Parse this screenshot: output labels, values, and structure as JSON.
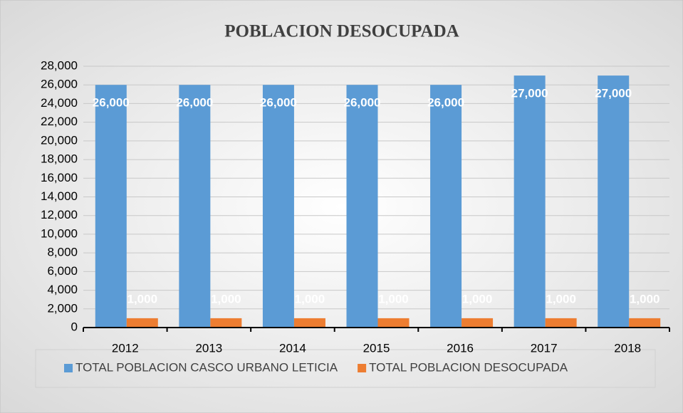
{
  "chart_data": {
    "type": "bar",
    "title": "POBLACION DESOCUPADA",
    "categories": [
      "2012",
      "2013",
      "2014",
      "2015",
      "2016",
      "2017",
      "2018"
    ],
    "series": [
      {
        "name": "TOTAL POBLACION CASCO URBANO LETICIA",
        "color": "#5b9bd5",
        "values": [
          26000,
          26000,
          26000,
          26000,
          26000,
          27000,
          27000
        ],
        "value_labels": [
          "26,000",
          "26,000",
          "26,000",
          "26,000",
          "26,000",
          "27,000",
          "27,000"
        ]
      },
      {
        "name": "TOTAL POBLACION DESOCUPADA",
        "color": "#ed7d31",
        "values": [
          1000,
          1000,
          1000,
          1000,
          1000,
          1000,
          1000
        ],
        "value_labels": [
          "1,000",
          "1,000",
          "1,000",
          "1,000",
          "1,000",
          "1,000",
          "1,000"
        ]
      }
    ],
    "ylim": [
      0,
      28000
    ],
    "yticks": [
      0,
      {
        "value": 2000,
        "label": "2,000"
      },
      {
        "value": 4000,
        "label": "4,000"
      },
      {
        "value": 6000,
        "label": "6,000"
      },
      {
        "value": 8000,
        "label": "8,000"
      },
      {
        "value": 10000,
        "label": "10,000"
      },
      {
        "value": 12000,
        "label": "12,000"
      },
      {
        "value": 14000,
        "label": "14,000"
      },
      {
        "value": 16000,
        "label": "16,000"
      },
      {
        "value": 18000,
        "label": "18,000"
      },
      {
        "value": 20000,
        "label": "20,000"
      },
      {
        "value": 22000,
        "label": "22,000"
      },
      {
        "value": 24000,
        "label": "24,000"
      },
      {
        "value": 26000,
        "label": "26,000"
      },
      {
        "value": 28000,
        "label": "28,000"
      }
    ],
    "grid": true,
    "legend": "bottom"
  }
}
